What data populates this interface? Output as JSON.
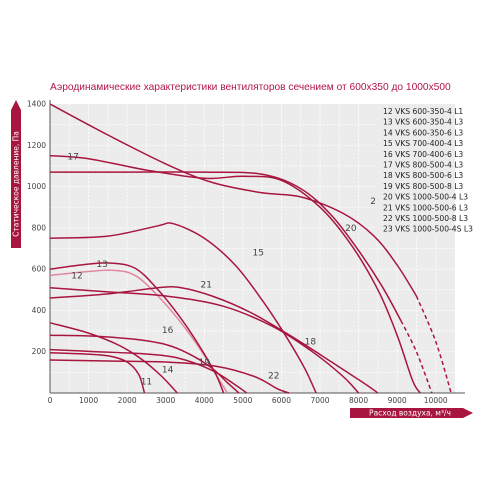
{
  "chart_data": {
    "type": "line",
    "title": "Аэродинамические характеристики вентиляторов сечением от 600х350 до 1000х500",
    "xlabel": "Расход воздуха, м³/ч",
    "ylabel": "Статическое давление, Па",
    "xlim": [
      0,
      10500
    ],
    "ylim": [
      0,
      1400
    ],
    "x_ticks": [
      "0",
      "1000",
      "2000",
      "3000",
      "4000",
      "5000",
      "6000",
      "7000",
      "8000",
      "9000",
      "10000"
    ],
    "y_ticks": [
      "200",
      "400",
      "600",
      "800",
      "1000",
      "1200",
      "1400"
    ],
    "grid": true,
    "legend_position": "top-right",
    "legend": [
      "12 VKS 600-350-4 L1",
      "13 VKS 600-350-4 L3",
      "14 VKS 600-350-6 L3",
      "15 VKS 700-400-4 L3",
      "16 VKS 700-400-6 L3",
      "17 VKS 800-500-4 L3",
      "18 VKS 800-500-6 L3",
      "19 VKS 800-500-8 L3",
      "20 VKS 1000-500-4 L3",
      "21 VKS 1000-500-6 L3",
      "22 VKS 1000-500-8 L3",
      "23 VKS 1000-500-4S L3"
    ],
    "series": [
      {
        "name": "12",
        "color": "#e0879f",
        "label_at": [
          700,
          570
        ],
        "points": [
          [
            0,
            570
          ],
          [
            800,
            585
          ],
          [
            1600,
            595
          ],
          [
            2200,
            570
          ],
          [
            2800,
            470
          ],
          [
            3400,
            340
          ],
          [
            3900,
            210
          ],
          [
            4300,
            90
          ],
          [
            4600,
            0
          ]
        ]
      },
      {
        "name": "13",
        "color": "#a8163f",
        "label_at": [
          1350,
          625
        ],
        "points": [
          [
            0,
            600
          ],
          [
            800,
            620
          ],
          [
            1500,
            630
          ],
          [
            2200,
            605
          ],
          [
            2800,
            500
          ],
          [
            3400,
            360
          ],
          [
            3900,
            220
          ],
          [
            4300,
            90
          ],
          [
            4500,
            0
          ]
        ]
      },
      {
        "name": "14",
        "color": "#a8163f",
        "label_at": [
          3050,
          115
        ],
        "points": [
          [
            0,
            340
          ],
          [
            1000,
            290
          ],
          [
            1800,
            230
          ],
          [
            2400,
            160
          ],
          [
            2900,
            80
          ],
          [
            3300,
            0
          ]
        ]
      },
      {
        "name": "15",
        "color": "#a8163f",
        "label_at": [
          5400,
          680
        ],
        "points": [
          [
            0,
            750
          ],
          [
            1500,
            760
          ],
          [
            2800,
            810
          ],
          [
            3200,
            820
          ],
          [
            4000,
            750
          ],
          [
            4800,
            620
          ],
          [
            5500,
            450
          ],
          [
            6100,
            280
          ],
          [
            6600,
            120
          ],
          [
            6900,
            0
          ]
        ]
      },
      {
        "name": "16",
        "color": "#a8163f",
        "label_at": [
          3050,
          305
        ],
        "points": [
          [
            0,
            280
          ],
          [
            1200,
            275
          ],
          [
            2200,
            260
          ],
          [
            3000,
            235
          ],
          [
            3600,
            190
          ],
          [
            4200,
            120
          ],
          [
            4600,
            50
          ],
          [
            4900,
            0
          ]
        ]
      },
      {
        "name": "17",
        "color": "#a8163f",
        "label_at": [
          600,
          1145
        ],
        "points": [
          [
            0,
            1150
          ],
          [
            1000,
            1135
          ],
          [
            2500,
            1080
          ],
          [
            4000,
            1040
          ],
          [
            5000,
            1050
          ],
          [
            6000,
            1030
          ],
          [
            7000,
            900
          ],
          [
            7800,
            720
          ],
          [
            8500,
            500
          ],
          [
            9000,
            280
          ],
          [
            9400,
            60
          ],
          [
            9600,
            0
          ]
        ]
      },
      {
        "name": "18",
        "color": "#a8163f",
        "label_at": [
          6750,
          250
        ],
        "points": [
          [
            0,
            510
          ],
          [
            1500,
            490
          ],
          [
            3000,
            470
          ],
          [
            4500,
            420
          ],
          [
            5800,
            320
          ],
          [
            6800,
            200
          ],
          [
            7600,
            80
          ],
          [
            8000,
            0
          ]
        ]
      },
      {
        "name": "19",
        "color": "#a8163f",
        "label_at": [
          4000,
          150
        ],
        "points": [
          [
            0,
            210
          ],
          [
            1200,
            200
          ],
          [
            2400,
            190
          ],
          [
            3300,
            170
          ],
          [
            4200,
            110
          ],
          [
            4800,
            40
          ],
          [
            5100,
            0
          ]
        ]
      },
      {
        "name": "20",
        "color": "#a8163f",
        "label_at": [
          7800,
          800
        ],
        "points": [
          [
            0,
            1070
          ],
          [
            2000,
            1070
          ],
          [
            4000,
            1070
          ],
          [
            5500,
            1060
          ],
          [
            6500,
            990
          ],
          [
            7300,
            860
          ],
          [
            8000,
            690
          ],
          [
            8600,
            520
          ],
          [
            9100,
            350
          ]
        ],
        "dashed_points": [
          [
            9100,
            350
          ],
          [
            9500,
            200
          ],
          [
            9900,
            0
          ]
        ]
      },
      {
        "name": "21",
        "color": "#a8163f",
        "label_at": [
          4050,
          525
        ],
        "points": [
          [
            0,
            460
          ],
          [
            1500,
            480
          ],
          [
            2800,
            510
          ],
          [
            3400,
            510
          ],
          [
            4200,
            470
          ],
          [
            5200,
            390
          ],
          [
            6300,
            270
          ],
          [
            7300,
            150
          ],
          [
            8200,
            40
          ],
          [
            8500,
            0
          ]
        ]
      },
      {
        "name": "22",
        "color": "#a8163f",
        "label_at": [
          5800,
          85
        ],
        "points": [
          [
            0,
            160
          ],
          [
            1500,
            155
          ],
          [
            3000,
            150
          ],
          [
            4300,
            130
          ],
          [
            5300,
            80
          ],
          [
            5900,
            20
          ],
          [
            6200,
            0
          ]
        ]
      },
      {
        "name": "23",
        "color": "#a8163f",
        "label_at": [
          8450,
          930
        ],
        "points": [
          [
            0,
            1400
          ],
          [
            1500,
            1250
          ],
          [
            3000,
            1110
          ],
          [
            4200,
            1020
          ],
          [
            5500,
            970
          ],
          [
            6500,
            950
          ],
          [
            7600,
            870
          ],
          [
            8400,
            760
          ],
          [
            9000,
            620
          ],
          [
            9500,
            470
          ]
        ],
        "dashed_points": [
          [
            9500,
            470
          ],
          [
            10000,
            250
          ],
          [
            10400,
            0
          ]
        ]
      },
      {
        "name": "11",
        "color": "#a8163f",
        "label_at": [
          2500,
          55
        ],
        "points": [
          [
            0,
            195
          ],
          [
            800,
            190
          ],
          [
            1500,
            180
          ],
          [
            2000,
            150
          ],
          [
            2300,
            90
          ],
          [
            2450,
            0
          ]
        ]
      }
    ]
  }
}
